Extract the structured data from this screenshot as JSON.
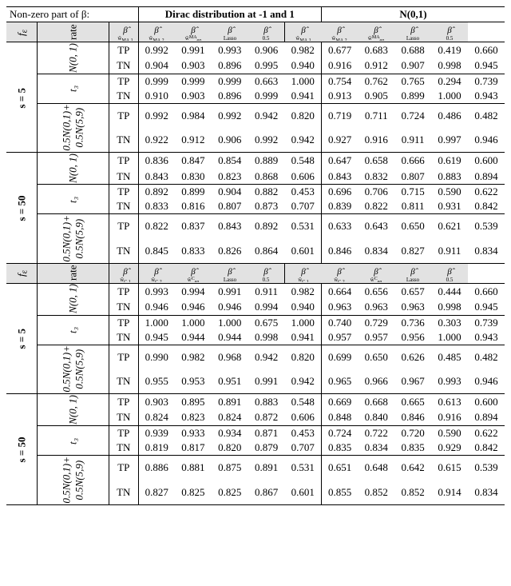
{
  "meta": {
    "font_family": "Times New Roman",
    "font_size_pt": 10,
    "shade_color": "#e2e2e2",
    "border_color": "#000000"
  },
  "top_header": {
    "beta_label": "Non-zero part of β:",
    "dirac": "Dirac distribution at -1 and 1",
    "normal": "N(0,1)"
  },
  "row_labels": {
    "fe": "f_ε",
    "rate": "rate",
    "s5": "s = 5",
    "s50": "s = 50",
    "n01": "N(0, 1)",
    "t3": "t₃",
    "mix": "0.5N(0,1)+\n0.5N(5,9)",
    "TP": "TP",
    "TN": "TN"
  },
  "panelA": {
    "headers": [
      "β̂_ŵ_{MA,1}",
      "β̂_ŵ_{MA,2}",
      "β̂_ŵ_eq^{MA}",
      "β̂_Lasso",
      "β̂_{0.5}",
      "β̂_ŵ_{MA,1}",
      "β̂_ŵ_{MA,2}",
      "β̂_ŵ_eq^{MA}",
      "β̂_Lasso",
      "β̂_{0.5}"
    ],
    "rows": [
      [
        "0.992",
        "0.991",
        "0.993",
        "0.906",
        "0.982",
        "0.677",
        "0.683",
        "0.688",
        "0.419",
        "0.660"
      ],
      [
        "0.904",
        "0.903",
        "0.896",
        "0.995",
        "0.940",
        "0.916",
        "0.912",
        "0.907",
        "0.998",
        "0.945"
      ],
      [
        "0.999",
        "0.999",
        "0.999",
        "0.663",
        "1.000",
        "0.754",
        "0.762",
        "0.765",
        "0.294",
        "0.739"
      ],
      [
        "0.910",
        "0.903",
        "0.896",
        "0.999",
        "0.941",
        "0.913",
        "0.905",
        "0.899",
        "1.000",
        "0.943"
      ],
      [
        "0.992",
        "0.984",
        "0.992",
        "0.942",
        "0.820",
        "0.719",
        "0.711",
        "0.724",
        "0.486",
        "0.482"
      ],
      [
        "0.922",
        "0.912",
        "0.906",
        "0.992",
        "0.942",
        "0.927",
        "0.916",
        "0.911",
        "0.997",
        "0.946"
      ],
      [
        "0.836",
        "0.847",
        "0.854",
        "0.889",
        "0.548",
        "0.647",
        "0.658",
        "0.666",
        "0.619",
        "0.600"
      ],
      [
        "0.843",
        "0.830",
        "0.823",
        "0.868",
        "0.606",
        "0.843",
        "0.832",
        "0.807",
        "0.883",
        "0.894"
      ],
      [
        "0.892",
        "0.899",
        "0.904",
        "0.882",
        "0.453",
        "0.696",
        "0.706",
        "0.715",
        "0.590",
        "0.622"
      ],
      [
        "0.833",
        "0.816",
        "0.807",
        "0.873",
        "0.707",
        "0.839",
        "0.822",
        "0.811",
        "0.931",
        "0.842"
      ],
      [
        "0.822",
        "0.837",
        "0.843",
        "0.892",
        "0.531",
        "0.633",
        "0.643",
        "0.650",
        "0.621",
        "0.539"
      ],
      [
        "0.845",
        "0.833",
        "0.826",
        "0.864",
        "0.601",
        "0.846",
        "0.834",
        "0.827",
        "0.911",
        "0.834"
      ]
    ]
  },
  "panelB": {
    "headers": [
      "β̂_ŵ_{C,1}",
      "β̂_ŵ_{C,2}",
      "β̂_ŵ_eq^{C}",
      "β̂_Lasso",
      "β̂_{0.5}",
      "β̂_ŵ_{C,1}",
      "β̂_ŵ_{C,2}",
      "β̂_ŵ_eq^{C}",
      "β̂_Lasso",
      "β̂_{0.5}"
    ],
    "rows": [
      [
        "0.993",
        "0.994",
        "0.991",
        "0.911",
        "0.982",
        "0.664",
        "0.656",
        "0.657",
        "0.444",
        "0.660"
      ],
      [
        "0.946",
        "0.946",
        "0.946",
        "0.994",
        "0.940",
        "0.963",
        "0.963",
        "0.963",
        "0.998",
        "0.945"
      ],
      [
        "1.000",
        "1.000",
        "1.000",
        "0.675",
        "1.000",
        "0.740",
        "0.729",
        "0.736",
        "0.303",
        "0.739"
      ],
      [
        "0.945",
        "0.944",
        "0.944",
        "0.998",
        "0.941",
        "0.957",
        "0.957",
        "0.956",
        "1.000",
        "0.943"
      ],
      [
        "0.990",
        "0.982",
        "0.968",
        "0.942",
        "0.820",
        "0.699",
        "0.650",
        "0.626",
        "0.485",
        "0.482"
      ],
      [
        "0.955",
        "0.953",
        "0.951",
        "0.991",
        "0.942",
        "0.965",
        "0.966",
        "0.967",
        "0.993",
        "0.946"
      ],
      [
        "0.903",
        "0.895",
        "0.891",
        "0.883",
        "0.548",
        "0.669",
        "0.668",
        "0.665",
        "0.613",
        "0.600"
      ],
      [
        "0.824",
        "0.823",
        "0.824",
        "0.872",
        "0.606",
        "0.848",
        "0.840",
        "0.846",
        "0.916",
        "0.894"
      ],
      [
        "0.939",
        "0.933",
        "0.934",
        "0.871",
        "0.453",
        "0.724",
        "0.722",
        "0.720",
        "0.590",
        "0.622"
      ],
      [
        "0.819",
        "0.817",
        "0.820",
        "0.879",
        "0.707",
        "0.835",
        "0.834",
        "0.835",
        "0.929",
        "0.842"
      ],
      [
        "0.886",
        "0.881",
        "0.875",
        "0.891",
        "0.531",
        "0.651",
        "0.648",
        "0.642",
        "0.615",
        "0.539"
      ],
      [
        "0.827",
        "0.825",
        "0.825",
        "0.867",
        "0.601",
        "0.855",
        "0.852",
        "0.852",
        "0.914",
        "0.834"
      ]
    ]
  }
}
